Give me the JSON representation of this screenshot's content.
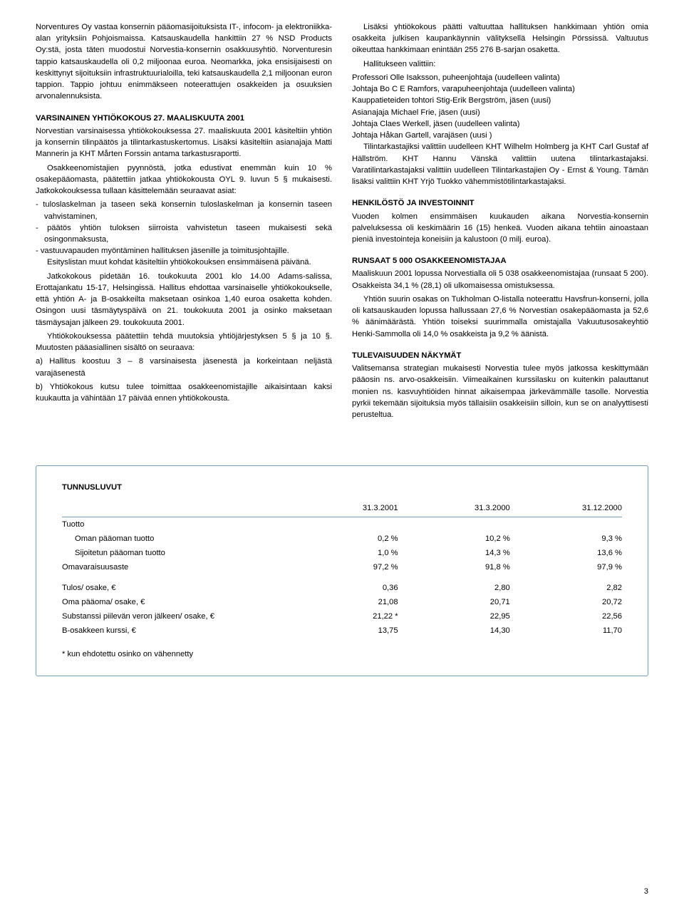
{
  "left": {
    "p1": "Norventures Oy vastaa konsernin pääomasijoituksista IT-, infocom- ja elektroniikka-alan yrityksiin Pohjoismaissa. Katsauskaudella hankittiin 27 % NSD Products Oy:stä, josta täten muodostui Norvestia-konsernin osakkuusyhtiö. Norventuresin tappio katsauskaudella oli 0,2 miljoonaa euroa. Neomarkka, joka ensisijaisesti on keskittynyt sijoituksiin infrastruktuurialoilla, teki katsauskaudella 2,1 miljoonan euron tappion. Tappio johtuu enimmäkseen noteerattujen osakkeiden ja osuuksien arvonalennuksista.",
    "h1": "VARSINAINEN YHTIÖKOKOUS 27. MAALISKUUTA 2001",
    "p2": "Norvestian varsinaisessa yhtiökokouksessa 27. maaliskuuta 2001 käsiteltiin yhtiön ja konsernin tilinpäätös ja tilintarkastuskertomus. Lisäksi käsiteltiin asianajaja Matti Mannerin ja KHT Mårten Forssin antama tarkastusraportti.",
    "p3": "Osakkeenomistajien pyynnöstä, jotka edustivat enemmän kuin 10 % osakepääomasta, päätettiin jatkaa yhtiökokousta OYL 9. luvun 5 § mukaisesti. Jatkokokouksessa tullaan käsittelemään seuraavat asiat:",
    "li1": "- tuloslaskelman ja taseen sekä konsernin tuloslaskelman ja konsernin taseen vahvistaminen,",
    "li2": "- päätös yhtiön tuloksen siirroista vahvistetun taseen mukaisesti sekä osingonmaksusta,",
    "li3": "- vastuuvapauden myöntäminen hallituksen jäsenille ja toimitusjohtajille.",
    "p4": "Esityslistan muut kohdat käsiteltiin yhtiökokouksen ensimmäisenä päivänä.",
    "p5": "Jatkokokous pidetään 16. toukokuuta 2001 klo 14.00 Adams-salissa, Erottajankatu 15-17, Helsingissä. Hallitus ehdottaa varsinaiselle yhtiökokoukselle, että yhtiön A- ja B-osakkeilta maksetaan osinkoa 1,40 euroa osaketta kohden. Osingon uusi täsmäytyspäivä on 21. toukokuuta 2001 ja osinko maksetaan täsmäysajan jälkeen 29. toukokuuta 2001.",
    "p6": "Yhtiökokouksessa päätettiin tehdä muutoksia yhtiöjärjestyksen 5 § ja 10 §. Muutosten pääasiallinen sisältö on seuraava:",
    "p7": "a) Hallitus koostuu 3 – 8 varsinaisesta jäsenestä ja korkeintaan neljästä varajäsenestä",
    "p8": "b) Yhtiökokous kutsu tulee toimittaa osakkeenomistajille aikaisintaan kaksi kuukautta ja vähintään 17 päivää ennen yhtiökokousta."
  },
  "right": {
    "p1": "Lisäksi yhtiökokous päätti valtuuttaa hallituksen hankkimaan yhtiön omia osakkeita julkisen kaupankäynnin välityksellä Helsingin Pörssissä. Valtuutus oikeuttaa hankkimaan enintään 255 276 B-sarjan osaketta.",
    "p2": "Hallitukseen valittiin:",
    "b1": "Professori Olle Isaksson, puheenjohtaja (uudelleen valinta)",
    "b2": "Johtaja Bo C E Ramfors, varapuheenjohtaja (uudelleen valinta)",
    "b3": "Kauppatieteiden tohtori Stig-Erik Bergström, jäsen (uusi)",
    "b4": "Asianajaja Michael Frie, jäsen (uusi)",
    "b5": "Johtaja Claes Werkell, jäsen (uudelleen valinta)",
    "b6": "Johtaja Håkan Gartell, varajäsen (uusi )",
    "p3": "Tilintarkastajiksi valittiin uudelleen KHT Wilhelm Holmberg ja KHT Carl Gustaf af Hällström. KHT Hannu Vänskä valittiin uutena tilintarkastajaksi. Varatilintarkastajaksi valittiin uudelleen Tilintarkastajien Oy - Ernst & Young. Tämän lisäksi valittiin KHT Yrjö Tuokko vähemmistötilintarkastajaksi.",
    "h1": "HENKILÖSTÖ JA INVESTOINNIT",
    "p4": "Vuoden kolmen ensimmäisen kuukauden aikana Norvestia-konsernin palveluksessa oli keskimäärin 16 (15) henkeä. Vuoden aikana tehtiin ainoastaan pieniä investointeja koneisiin ja kalustoon (0 milj. euroa).",
    "h2": "RUNSAAT 5 000 OSAKKEENOMISTAJAA",
    "p5": "Maaliskuun 2001 lopussa Norvestialla oli 5 038 osakkeenomistajaa (runsaat 5 200). Osakkeista 34,1 % (28,1) oli ulkomaisessa omistuksessa.",
    "p6": "Yhtiön suurin osakas on Tukholman O-listalla noteerattu Havsfrun-konserni, jolla oli katsauskauden lopussa hallussaan 27,6 % Norvestian osakepääomasta ja 52,6 % äänimäärästä. Yhtiön toiseksi suurimmalla omistajalla Vakuutusosakeyhtiö Henki-Sammolla oli 14,0 % osakkeista ja 9,2 % äänistä.",
    "h3": "TULEVAISUUDEN NÄKYMÄT",
    "p7": "Valitsemansa strategian mukaisesti Norvestia tulee myös jatkossa keskittymään pääosin ns. arvo-osakkeisiin. Viimeaikainen kurssilasku on kuitenkin palauttanut monien ns. kasvuyhtiöiden hinnat aikaisempaa järkevämmälle tasolle. Norvestia pyrkii tekemään sijoituksia myös tällaisiin osakkeisiin silloin, kun se on analyyttisesti perusteltua."
  },
  "table": {
    "title": "TUNNUSLUVUT",
    "cols": [
      "",
      "31.3.2001",
      "31.3.2000",
      "31.12.2000"
    ],
    "group1_label": "Tuotto",
    "rows1": [
      {
        "label": "Oman pääoman tuotto",
        "v": [
          "0,2 %",
          "10,2 %",
          "9,3 %"
        ]
      },
      {
        "label": "Sijoitetun pääoman tuotto",
        "v": [
          "1,0 %",
          "14,3 %",
          "13,6 %"
        ]
      },
      {
        "label": "Omavaraisuusaste",
        "v": [
          "97,2 %",
          "91,8 %",
          "97,9 %"
        ],
        "noindent": true
      }
    ],
    "rows2": [
      {
        "label": "Tulos/ osake, €",
        "v": [
          "0,36",
          "2,80",
          "2,82"
        ]
      },
      {
        "label": "Oma pääoma/ osake, €",
        "v": [
          "21,08",
          "20,71",
          "20,72"
        ]
      },
      {
        "label": "Substanssi piilevän veron jälkeen/ osake, €",
        "v": [
          "21,22 *",
          "22,95",
          "22,56"
        ]
      },
      {
        "label": "B-osakkeen kurssi, €",
        "v": [
          "13,75",
          "14,30",
          "11,70"
        ]
      }
    ],
    "footnote": "* kun ehdotettu osinko on vähennetty"
  },
  "page_number": "3"
}
